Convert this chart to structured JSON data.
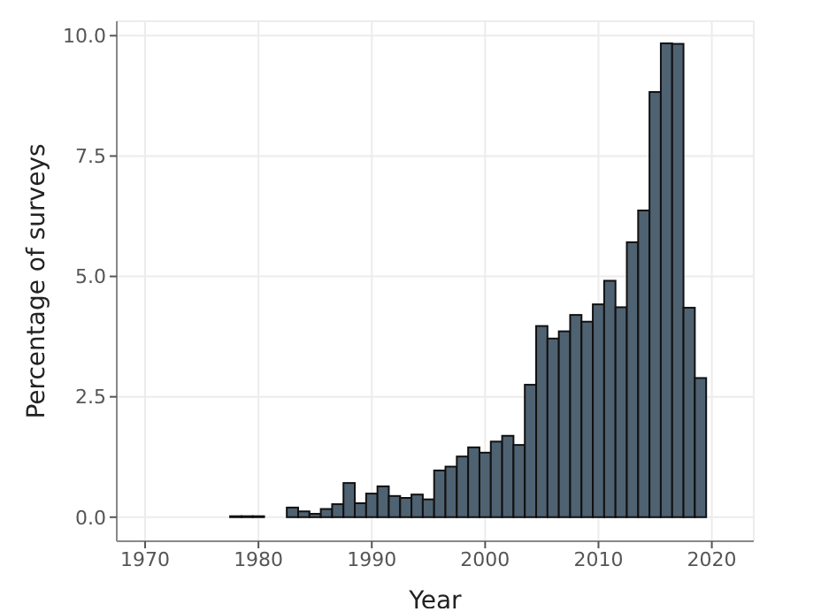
{
  "chart_data": {
    "type": "histogram",
    "xlabel": "Year",
    "ylabel": "Percentage of surveys",
    "bins": [
      1970.5,
      1971.5,
      1972.5,
      1973.5,
      1974.5,
      1975.5,
      1976.5,
      1977.5,
      1978.5,
      1979.5,
      1980.5,
      1981.5,
      1982.5,
      1983.5,
      1984.5,
      1985.5,
      1986.5,
      1987.5,
      1988.5,
      1989.5,
      1990.5,
      1991.5,
      1992.5,
      1993.5,
      1994.5,
      1995.5,
      1996.5,
      1997.5,
      1998.5,
      1999.5,
      2000.5,
      2001.5,
      2002.5,
      2003.5,
      2004.5,
      2005.5,
      2006.5,
      2007.5,
      2008.5,
      2009.5,
      2010.5,
      2011.5,
      2012.5,
      2013.5,
      2014.5,
      2015.5,
      2016.5,
      2017.5,
      2018.5,
      2019.5,
      2020.5
    ],
    "values": [
      0,
      0,
      0,
      0,
      0,
      0,
      0,
      0.02,
      0.02,
      0.02,
      0,
      0,
      0.2,
      0.12,
      0.07,
      0.17,
      0.27,
      0.71,
      0.29,
      0.49,
      0.64,
      0.44,
      0.4,
      0.47,
      0.37,
      0.97,
      1.05,
      1.26,
      1.45,
      1.34,
      1.57,
      1.69,
      1.5,
      2.75,
      3.97,
      3.71,
      3.86,
      4.2,
      4.06,
      4.42,
      4.91,
      4.36,
      5.71,
      6.37,
      8.83,
      9.84,
      9.83,
      4.35,
      2.89,
      0
    ],
    "color": "#4f6272",
    "xlim": [
      1967.5,
      2023.7
    ],
    "xticks": [
      1970,
      1980,
      1990,
      2000,
      2010,
      2020
    ],
    "ylim": [
      -0.5,
      10.3
    ],
    "yticks": [
      {
        "value": 0,
        "label": "0.0"
      },
      {
        "value": 2.5,
        "label": "2.5"
      },
      {
        "value": 5,
        "label": "5.0"
      },
      {
        "value": 7.5,
        "label": "7.5"
      },
      {
        "value": 10,
        "label": "10.0"
      }
    ],
    "grid": true
  }
}
